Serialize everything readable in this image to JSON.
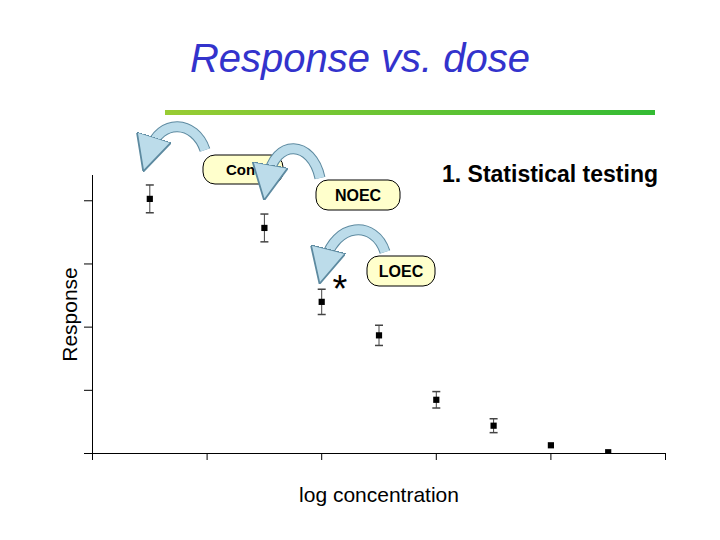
{
  "chart_data": {
    "type": "scatter",
    "title": "Response vs. dose",
    "x_label": "log concentration",
    "y_label": "Response",
    "x": [
      0.5,
      1.5,
      2.0,
      2.5,
      3.0,
      3.5,
      4.0,
      4.5
    ],
    "values": [
      4.03,
      3.57,
      2.4,
      1.87,
      0.85,
      0.44,
      0.13,
      0.02
    ],
    "errors": [
      0.22,
      0.22,
      0.2,
      0.16,
      0.13,
      0.11,
      0,
      0
    ],
    "xlim": [
      0,
      5
    ],
    "xticks": [
      0,
      1,
      2,
      3,
      4,
      5
    ],
    "ylim": [
      0,
      4.4
    ],
    "yticks": [
      0,
      1,
      2,
      3,
      4
    ],
    "tick_labels": false,
    "grid": false,
    "color": "#000000",
    "marker": "square",
    "annotations": [
      "Cont",
      "NOEC",
      "LOEC",
      "*",
      "1. Statistical testing"
    ]
  }
}
